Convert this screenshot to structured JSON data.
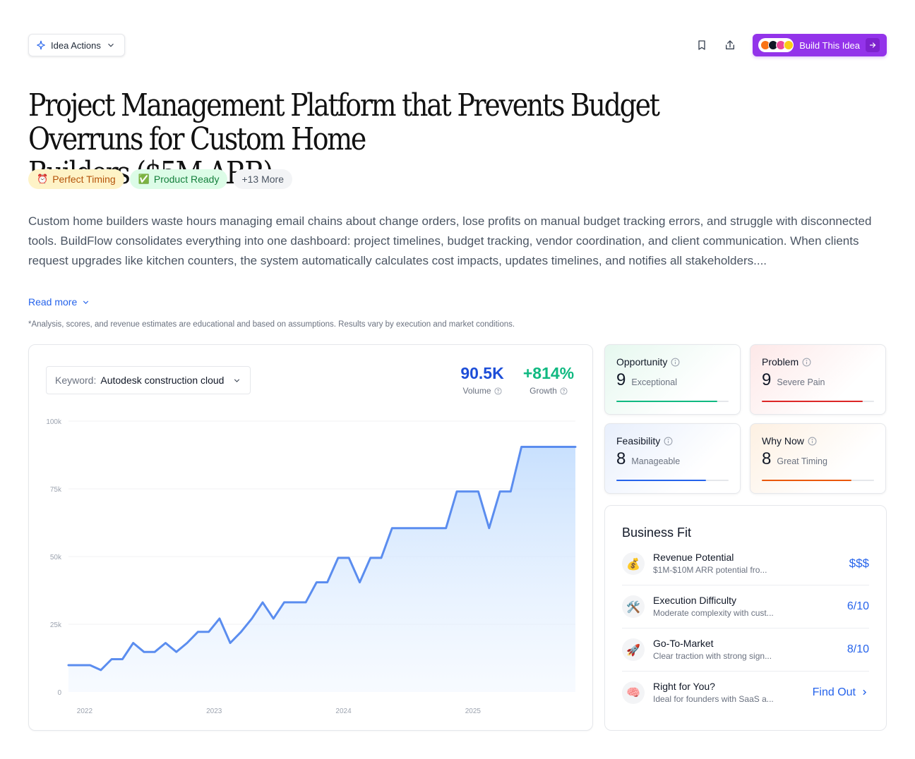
{
  "toolbar": {
    "idea_actions_label": "Idea Actions",
    "build_label": "Build This Idea"
  },
  "title": {
    "line1": "Project Management Platform that Prevents Budget Overruns for Custom Home",
    "line2": "Builders ($5M ARR)"
  },
  "tags": [
    {
      "icon": "⏰",
      "label": "Perfect Timing"
    },
    {
      "icon": "✅",
      "label": "Product Ready"
    },
    {
      "label": "+13 More"
    }
  ],
  "description": "Custom home builders waste hours managing email chains about change orders, lose profits on manual budget tracking errors, and struggle with disconnected tools. BuildFlow consolidates everything into one dashboard: project timelines, budget tracking, vendor coordination, and client communication. When clients request upgrades like kitchen counters, the system automatically calculates cost impacts, updates timelines, and notifies all stakeholders....",
  "read_more_label": "Read more",
  "disclaimer": "*Analysis, scores, and revenue estimates are educational and based on assumptions. Results vary by execution and market conditions.",
  "keyword": {
    "label": "Keyword:",
    "value": "Autodesk construction cloud"
  },
  "metrics": {
    "volume_value": "90.5K",
    "volume_label": "Volume",
    "growth_value": "+814%",
    "growth_label": "Growth"
  },
  "colors": {
    "accent_blue": "#1d4ed8",
    "growth_green": "#10b981",
    "line_blue": "#5b8def",
    "build_purple": "#9333ea"
  },
  "chart_data": {
    "type": "area",
    "y_ticks": [
      "0",
      "25k",
      "50k",
      "75k",
      "100k"
    ],
    "ylim": [
      0,
      100000
    ],
    "x_ticks": [
      "2022",
      "2023",
      "2024",
      "2025"
    ],
    "x_tick_positions": [
      1.5,
      13.5,
      25.5,
      37.5
    ],
    "grid": true,
    "values": [
      9900,
      9900,
      9900,
      8100,
      12100,
      12100,
      18100,
      14800,
      14800,
      18100,
      14800,
      18100,
      22200,
      22200,
      27100,
      18100,
      22200,
      27100,
      33100,
      27100,
      33100,
      33100,
      33100,
      40500,
      40500,
      49500,
      49500,
      40500,
      49500,
      49500,
      60500,
      60500,
      60500,
      60500,
      60500,
      60500,
      74000,
      74000,
      74000,
      60500,
      74000,
      74000,
      90500,
      90500,
      90500,
      90500,
      90500,
      90500
    ]
  },
  "scores": [
    {
      "name": "Opportunity",
      "score": "9",
      "word": "Exceptional",
      "fill": 0.9,
      "color": "#10b981",
      "bg": "linear-gradient(135deg,#e6f8ef 0%,#ffffff 70%)"
    },
    {
      "name": "Problem",
      "score": "9",
      "word": "Severe Pain",
      "fill": 0.9,
      "color": "#dc2626",
      "bg": "linear-gradient(135deg,#fde8e8 0%,#ffffff 70%)"
    },
    {
      "name": "Feasibility",
      "score": "8",
      "word": "Manageable",
      "fill": 0.8,
      "color": "#2563eb",
      "bg": "linear-gradient(135deg,#e8effc 0%,#ffffff 70%)"
    },
    {
      "name": "Why Now",
      "score": "8",
      "word": "Great Timing",
      "fill": 0.8,
      "color": "#ea580c",
      "bg": "linear-gradient(135deg,#fdf0e2 0%,#ffffff 70%)"
    }
  ],
  "business_fit": {
    "title": "Business Fit",
    "rows": [
      {
        "icon": "💰",
        "name": "Revenue Potential",
        "sub": "$1M-$10M ARR potential fro...",
        "value": "$$$"
      },
      {
        "icon": "🛠️",
        "name": "Execution Difficulty",
        "sub": "Moderate complexity with cust...",
        "value": "6/10"
      },
      {
        "icon": "🚀",
        "name": "Go-To-Market",
        "sub": "Clear traction with strong sign...",
        "value": "8/10"
      },
      {
        "icon": "🧠",
        "name": "Right for You?",
        "sub": "Ideal for founders with SaaS a...",
        "value": "Find Out"
      }
    ]
  }
}
